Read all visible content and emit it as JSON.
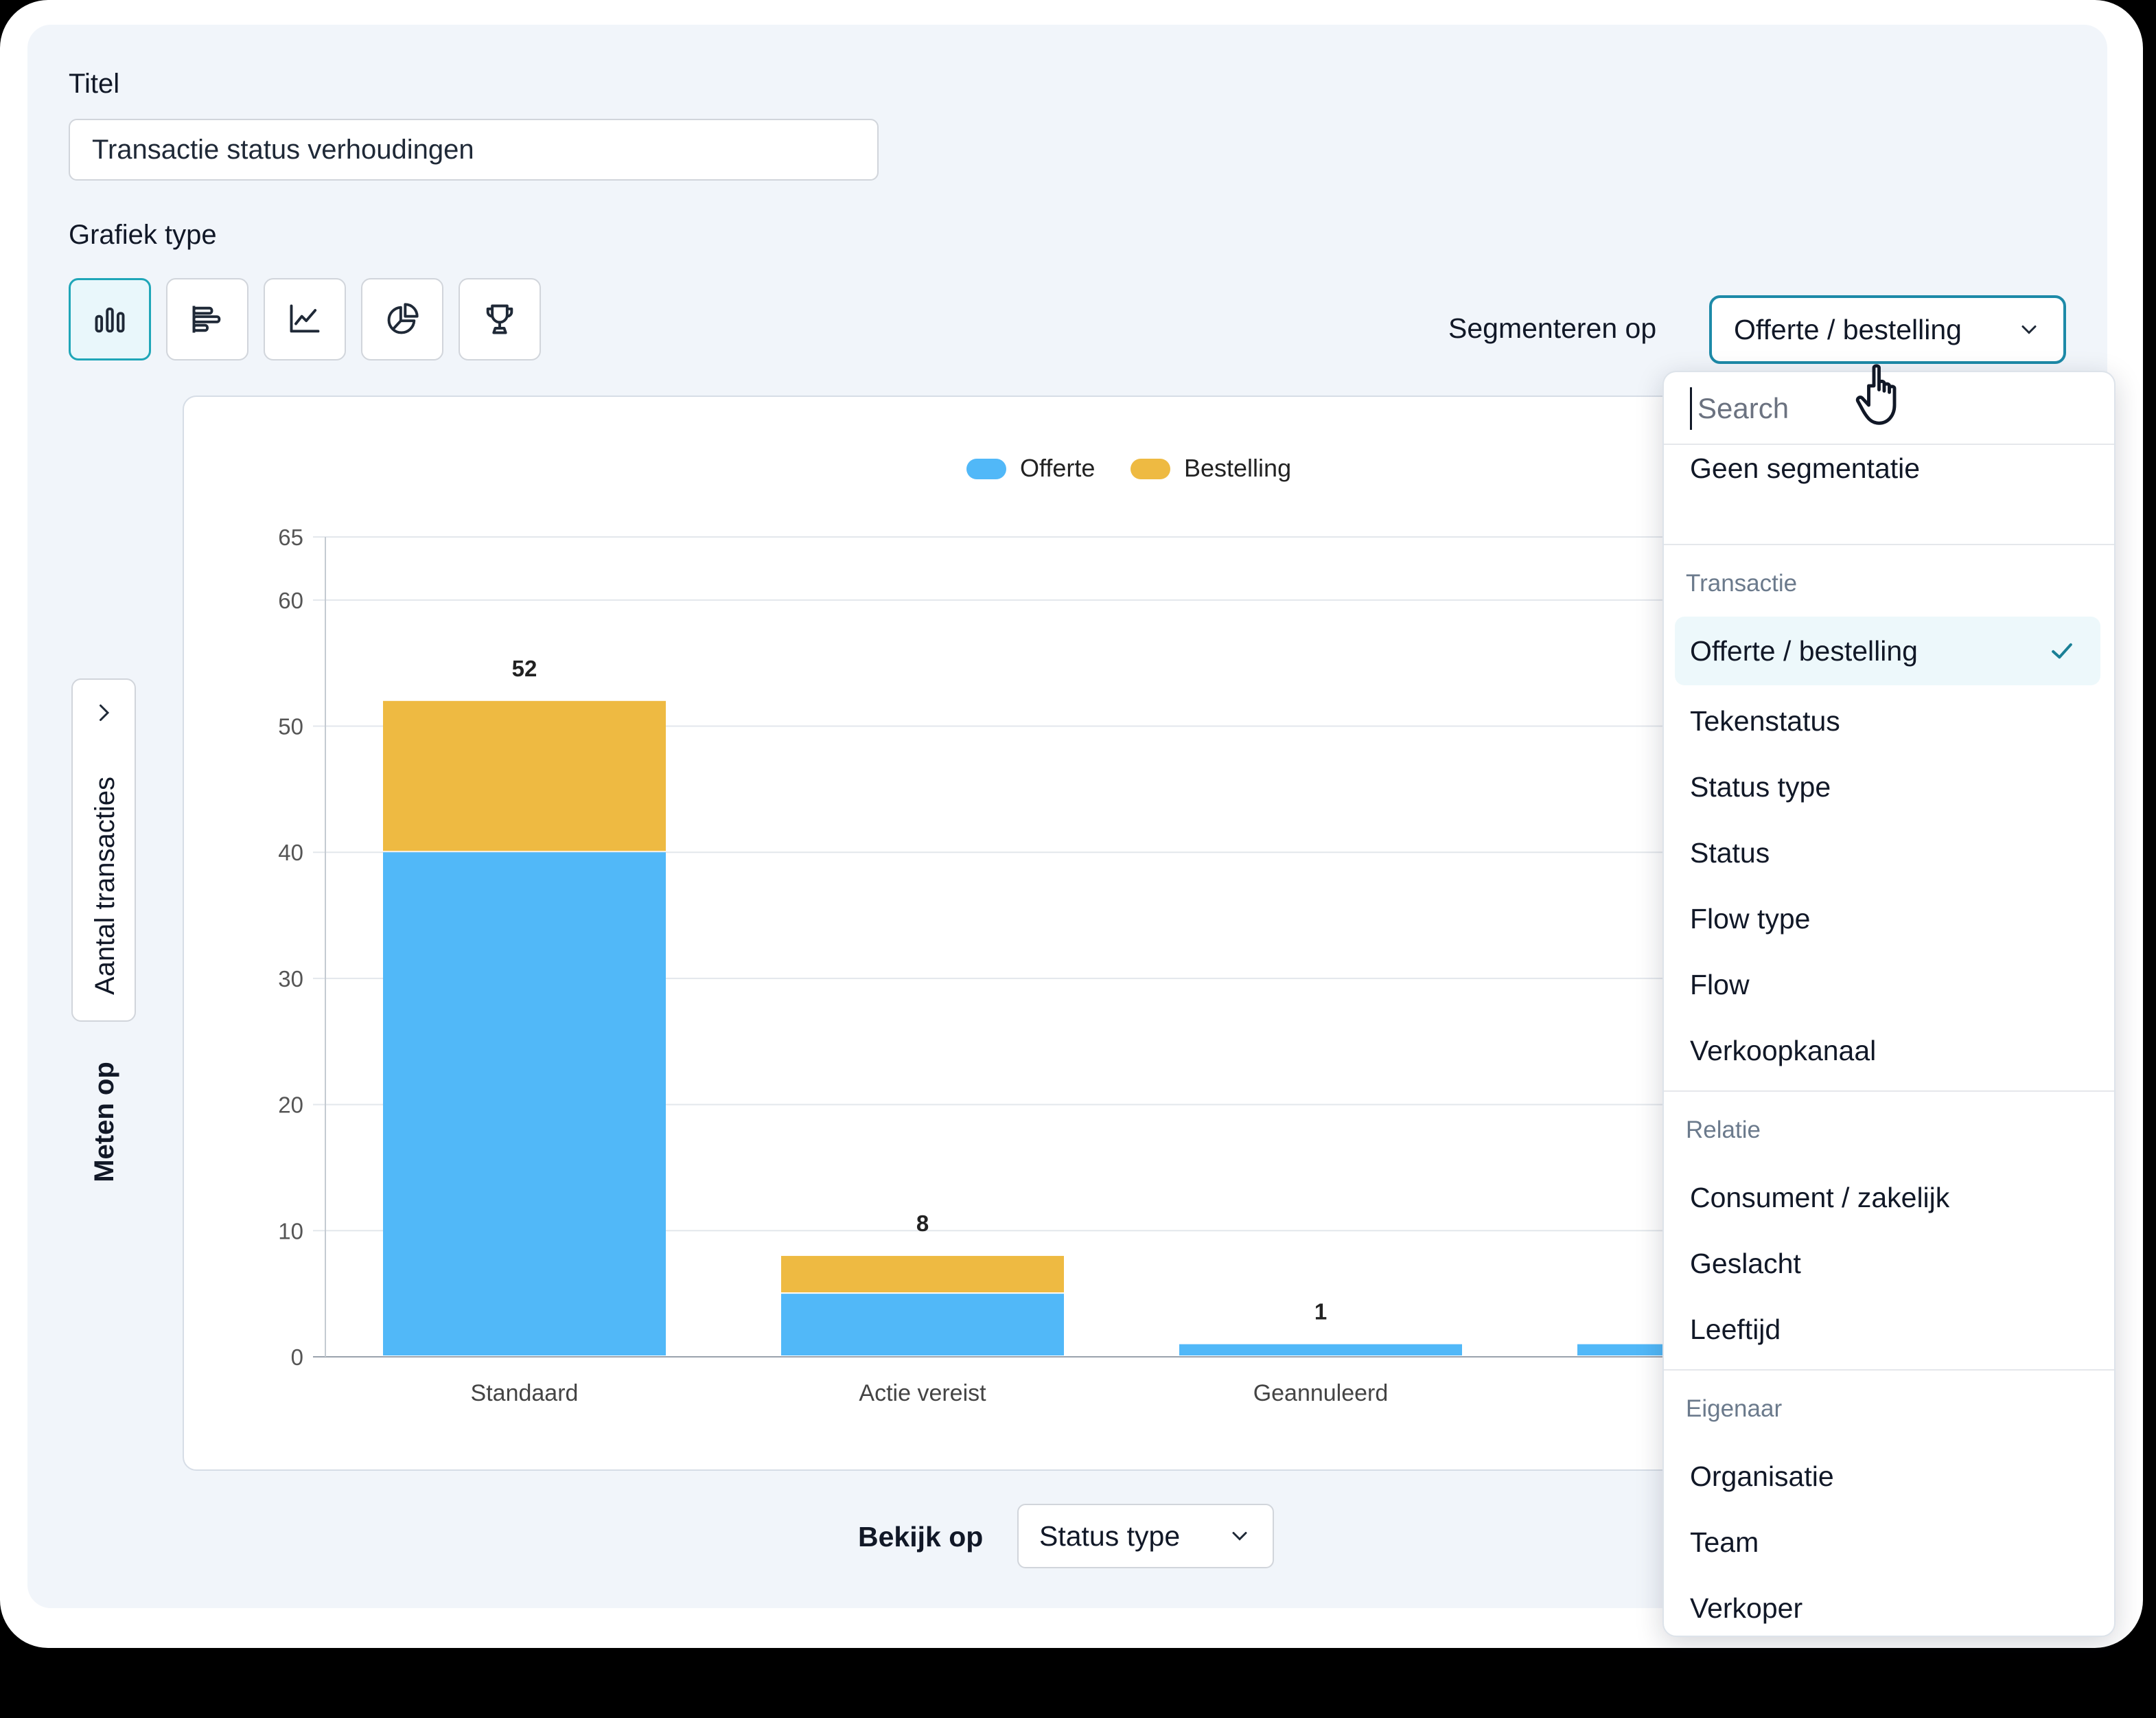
{
  "form": {
    "title_label": "Titel",
    "title_value": "Transactie status verhoudingen",
    "chart_type_label": "Grafiek type",
    "chart_types": [
      "bar-chart-icon",
      "horizontal-bar-icon",
      "line-chart-icon",
      "pie-chart-icon",
      "trophy-icon"
    ],
    "active_chart_type": "bar-chart-icon",
    "segment_label": "Segmenteren op",
    "segment_value": "Offerte / bestelling",
    "measure_label": "Meten op",
    "measure_value": "Aantal transacties",
    "view_label": "Bekijk op",
    "view_value": "Status type"
  },
  "dropdown": {
    "search_placeholder": "Search",
    "no_segment": "Geen segmentatie",
    "groups": [
      {
        "label": "Transactie",
        "items": [
          "Offerte / bestelling",
          "Tekenstatus",
          "Status type",
          "Status",
          "Flow type",
          "Flow",
          "Verkoopkanaal"
        ]
      },
      {
        "label": "Relatie",
        "items": [
          "Consument / zakelijk",
          "Geslacht",
          "Leeftijd"
        ]
      },
      {
        "label": "Eigenaar",
        "items": [
          "Organisatie",
          "Team",
          "Verkoper"
        ]
      }
    ],
    "selected": "Offerte / bestelling"
  },
  "chart_data": {
    "type": "bar",
    "stacked": true,
    "categories": [
      "Standaard",
      "Actie vereist",
      "Geannuleerd"
    ],
    "series": [
      {
        "name": "Offerte",
        "values": [
          40,
          5,
          1
        ],
        "color": "#51b8f8"
      },
      {
        "name": "Bestelling",
        "values": [
          12,
          3,
          0
        ],
        "color": "#eeba42"
      }
    ],
    "totals": [
      52,
      8,
      1
    ],
    "partial_category_offerte_value": 1,
    "yticks": [
      0,
      10,
      20,
      30,
      40,
      50,
      60,
      65
    ],
    "ylim": [
      0,
      65
    ],
    "legend_position": "top-center",
    "grid": true
  },
  "colors": {
    "accent": "#1fa6b8",
    "select_border": "#1d8aa8",
    "selected_bg": "#edf8fb",
    "check": "#1a8096"
  }
}
